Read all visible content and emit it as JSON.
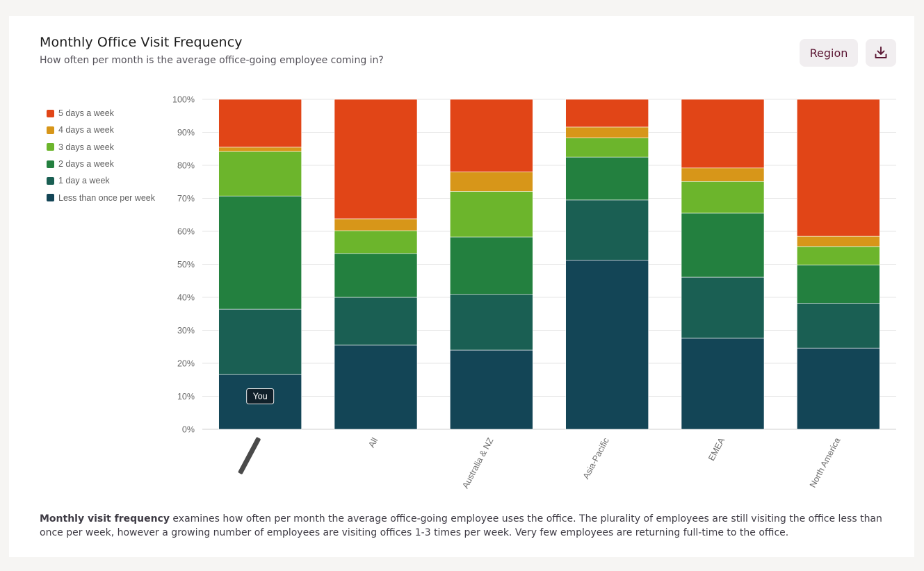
{
  "header": {
    "title": "Monthly Office Visit Frequency",
    "subtitle": "How often per month is the average office-going employee coming in?"
  },
  "toolbar": {
    "region_label": "Region",
    "download_icon": "download-icon"
  },
  "description": {
    "bold_lead": "Monthly visit frequency",
    "text": " examines how often per month the average office-going employee uses the office. The plurality of employees are still visiting the office less than once per week, however a growing number of employees are visiting offices 1-3 times per week. Very few employees are returning full-time to the office."
  },
  "chart_data": {
    "type": "bar",
    "stacked": true,
    "title": "",
    "xlabel": "",
    "ylabel": "",
    "ylim": [
      0,
      100
    ],
    "y_ticks": [
      "0%",
      "10%",
      "20%",
      "30%",
      "40%",
      "50%",
      "60%",
      "70%",
      "80%",
      "90%",
      "100%"
    ],
    "grid": true,
    "legend_position": "left",
    "categories": [
      "[redacted]",
      "All",
      "Australia & NZ",
      "Asia-Pacific",
      "EMEA",
      "North America"
    ],
    "series": [
      {
        "name": "Less than once per week",
        "color": "#134556",
        "values": [
          16.6,
          25.5,
          24.0,
          51.3,
          27.6,
          24.6
        ]
      },
      {
        "name": "1 day a week",
        "color": "#1a5f53",
        "values": [
          19.8,
          14.5,
          16.9,
          18.2,
          18.5,
          13.6
        ]
      },
      {
        "name": "2 days a week",
        "color": "#23803f",
        "values": [
          34.3,
          13.3,
          17.4,
          13.0,
          19.4,
          11.6
        ]
      },
      {
        "name": "3 days a week",
        "color": "#6cb52c",
        "values": [
          13.5,
          6.9,
          13.8,
          5.8,
          9.6,
          5.6
        ]
      },
      {
        "name": "4 days a week",
        "color": "#d79619",
        "values": [
          1.3,
          3.6,
          5.9,
          3.3,
          4.1,
          3.1
        ]
      },
      {
        "name": "5 days a week",
        "color": "#e14517",
        "values": [
          14.5,
          36.2,
          22.0,
          8.4,
          20.8,
          41.5
        ]
      }
    ],
    "annotation": {
      "category_index": 0,
      "text": "You"
    }
  }
}
